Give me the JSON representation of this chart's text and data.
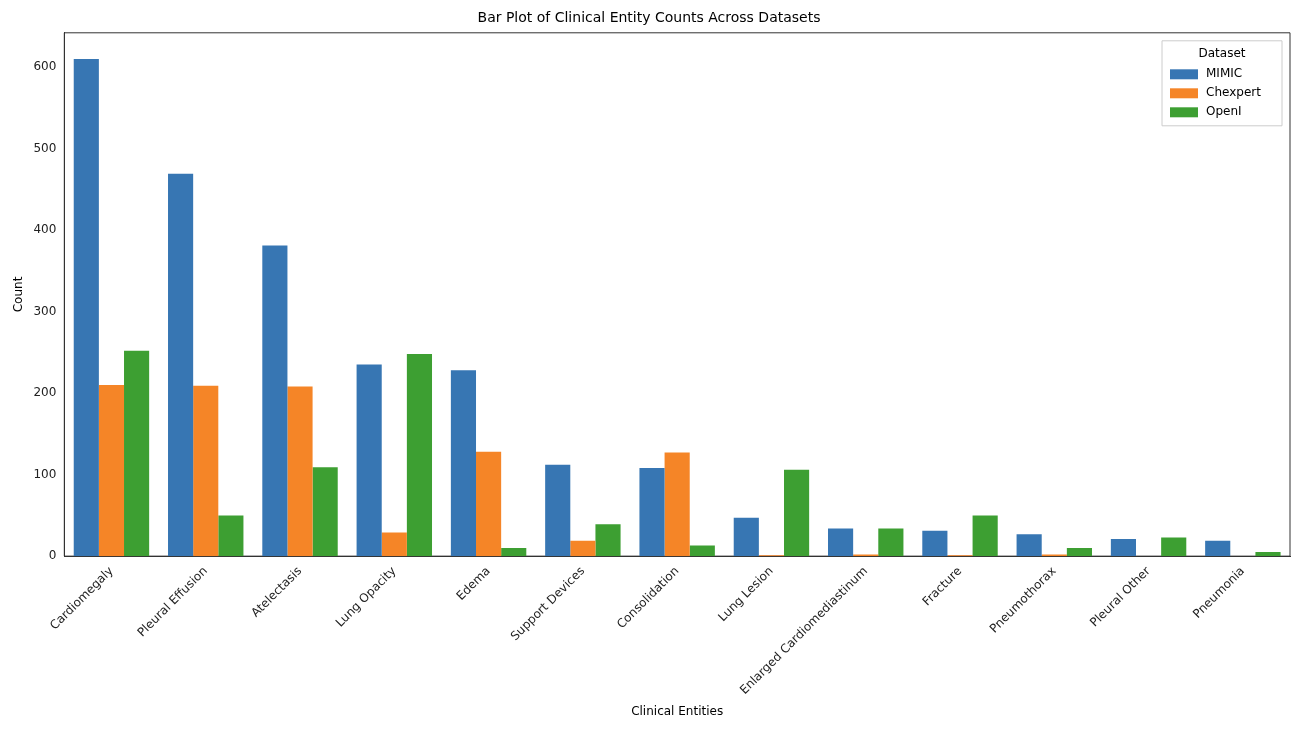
{
  "chart_data": {
    "type": "bar",
    "title": "Bar Plot of Clinical Entity Counts Across Datasets",
    "xlabel": "Clinical Entities",
    "ylabel": "Count",
    "legend_title": "Dataset",
    "categories": [
      "Cardiomegaly",
      "Pleural Effusion",
      "Atelectasis",
      "Lung Opacity",
      "Edema",
      "Support Devices",
      "Consolidation",
      "Lung Lesion",
      "Enlarged Cardiomediastinum",
      "Fracture",
      "Pneumothorax",
      "Pleural Other",
      "Pneumonia"
    ],
    "series": [
      {
        "name": "MIMIC",
        "color": "#3776b3",
        "values": [
          610,
          469,
          381,
          235,
          228,
          112,
          108,
          47,
          34,
          31,
          27,
          21,
          19
        ]
      },
      {
        "name": "Chexpert",
        "color": "#f58527",
        "values": [
          210,
          209,
          208,
          29,
          128,
          19,
          127,
          1,
          2,
          1,
          2,
          0,
          0
        ]
      },
      {
        "name": "OpenI",
        "color": "#3d9f32",
        "values": [
          252,
          50,
          109,
          248,
          10,
          39,
          13,
          106,
          34,
          50,
          10,
          23,
          5
        ]
      }
    ],
    "ylim": [
      0,
      642
    ],
    "yticks": [
      0,
      100,
      200,
      300,
      400,
      500,
      600
    ],
    "grid": false,
    "legend": "top right"
  }
}
